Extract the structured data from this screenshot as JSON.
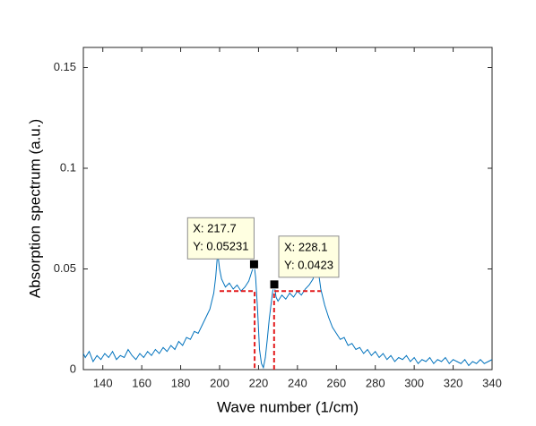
{
  "chart_data": {
    "type": "line",
    "xlabel": "Wave number (1/cm)",
    "ylabel": "Absorption spectrum (a.u.)",
    "color": "#0072bd",
    "xlim": [
      130,
      340
    ],
    "ylim": [
      0,
      0.16
    ],
    "xticks": [
      140,
      160,
      180,
      200,
      220,
      240,
      260,
      280,
      300,
      320,
      340
    ],
    "yticks": [
      0,
      0.05,
      0.1,
      0.15
    ],
    "x": [
      130,
      131,
      133,
      135,
      137,
      139,
      141,
      143,
      145,
      147,
      149,
      151,
      153,
      155,
      157,
      159,
      161,
      163,
      165,
      167,
      169,
      171,
      173,
      175,
      177,
      179,
      181,
      183,
      185,
      187,
      189,
      191,
      193,
      195,
      197,
      198,
      199,
      200,
      201,
      203,
      205,
      207,
      209,
      211,
      213,
      215,
      216,
      217,
      217.7,
      218.5,
      219.5,
      220.5,
      221.5,
      222.5,
      223.5,
      224.5,
      225.5,
      226.5,
      227.3,
      228.1,
      229,
      230,
      232,
      234,
      236,
      238,
      240,
      242,
      244,
      246,
      248,
      249,
      250,
      251,
      252,
      254,
      256,
      258,
      260,
      262,
      264,
      266,
      268,
      270,
      272,
      274,
      276,
      278,
      280,
      282,
      284,
      286,
      288,
      290,
      292,
      294,
      296,
      298,
      300,
      302,
      304,
      306,
      308,
      310,
      312,
      314,
      316,
      318,
      320,
      322,
      324,
      326,
      328,
      330,
      332,
      334,
      336,
      338,
      340
    ],
    "values": [
      0.008,
      0.006,
      0.009,
      0.004,
      0.007,
      0.005,
      0.008,
      0.006,
      0.009,
      0.005,
      0.007,
      0.006,
      0.01,
      0.007,
      0.005,
      0.008,
      0.006,
      0.009,
      0.007,
      0.01,
      0.008,
      0.011,
      0.009,
      0.012,
      0.01,
      0.014,
      0.012,
      0.016,
      0.015,
      0.019,
      0.018,
      0.022,
      0.026,
      0.03,
      0.038,
      0.046,
      0.058,
      0.05,
      0.045,
      0.041,
      0.043,
      0.04,
      0.042,
      0.039,
      0.041,
      0.044,
      0.047,
      0.05,
      0.05231,
      0.046,
      0.03,
      0.01,
      0.003,
      0.001,
      0.006,
      0.015,
      0.025,
      0.033,
      0.039,
      0.0423,
      0.036,
      0.034,
      0.037,
      0.035,
      0.038,
      0.036,
      0.039,
      0.037,
      0.04,
      0.042,
      0.045,
      0.049,
      0.052,
      0.047,
      0.04,
      0.032,
      0.026,
      0.021,
      0.018,
      0.015,
      0.016,
      0.012,
      0.013,
      0.01,
      0.011,
      0.008,
      0.01,
      0.007,
      0.009,
      0.006,
      0.008,
      0.005,
      0.007,
      0.004,
      0.006,
      0.005,
      0.007,
      0.004,
      0.006,
      0.003,
      0.005,
      0.004,
      0.006,
      0.003,
      0.005,
      0.004,
      0.006,
      0.003,
      0.005,
      0.004,
      0.003,
      0.005,
      0.002,
      0.004,
      0.003,
      0.005,
      0.003,
      0.004,
      0.005
    ],
    "annotations": [
      {
        "x": 217.7,
        "y": 0.05231,
        "label_x": "X: 217.7",
        "label_y": "Y: 0.05231"
      },
      {
        "x": 228.1,
        "y": 0.0423,
        "label_x": "X: 228.1",
        "label_y": "Y: 0.0423"
      }
    ],
    "dashed_lines": {
      "color": "#e31a1c",
      "lines": [
        {
          "x": [
            200,
            218,
            218
          ],
          "y": [
            0.039,
            0.039,
            0
          ]
        },
        {
          "x": [
            228,
            228,
            252
          ],
          "y": [
            0,
            0.039,
            0.039
          ]
        }
      ]
    }
  }
}
